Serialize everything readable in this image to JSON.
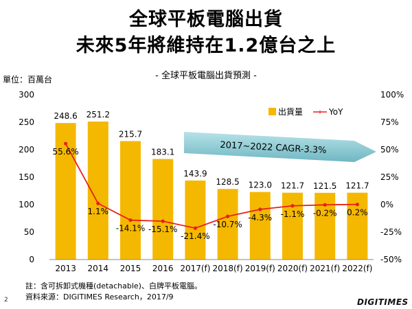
{
  "page": {
    "title_line1": "全球平板電腦出貨",
    "title_line2": "未來5年將維持在1.2億台之上",
    "note": "註：含可拆卸式機種(detachable)、白牌平板電腦。",
    "source": "資料來源：DIGITIMES Research，2017/9",
    "page_number": "2",
    "logo": "DIGITIMES"
  },
  "chart_data": {
    "type": "bar",
    "title": "- 全球平板電腦出貨預測 -",
    "unit_label": "單位：百萬台",
    "categories": [
      "2013",
      "2014",
      "2015",
      "2016",
      "2017(f)",
      "2018(f)",
      "2019(f)",
      "2020(f)",
      "2021(f)",
      "2022(f)"
    ],
    "series": [
      {
        "name": "出貨量",
        "type": "bar",
        "axis": "left",
        "values": [
          248.6,
          251.2,
          215.7,
          183.1,
          143.9,
          128.5,
          123.0,
          121.7,
          121.5,
          121.7
        ],
        "labels": [
          "248.6",
          "251.2",
          "215.7",
          "183.1",
          "143.9",
          "128.5",
          "123.0",
          "121.7",
          "121.5",
          "121.7"
        ]
      },
      {
        "name": "YoY",
        "type": "line",
        "axis": "right",
        "values": [
          55.6,
          1.1,
          -14.1,
          -15.1,
          -21.4,
          -10.7,
          -4.3,
          -1.1,
          -0.2,
          0.2
        ],
        "labels": [
          "55.6%",
          "1.1%",
          "-14.1%",
          "-15.1%",
          "-21.4%",
          "-10.7%",
          "-4.3%",
          "-1.1%",
          "-0.2%",
          "0.2%"
        ]
      }
    ],
    "y_left": {
      "min": 0,
      "max": 300,
      "ticks": [
        "0",
        "50",
        "100",
        "150",
        "200",
        "250",
        "300"
      ]
    },
    "y_right": {
      "min": -50,
      "max": 100,
      "ticks": [
        "-50%",
        "-25%",
        "0%",
        "25%",
        "50%",
        "75%",
        "100%"
      ]
    },
    "grid": false,
    "legend_position": "top-right",
    "annotation": "2017~2022 CAGR-3.3%",
    "colors": {
      "bar": "#F5B800",
      "line": "#E8201A",
      "arrow": "#7FC4CF"
    }
  }
}
